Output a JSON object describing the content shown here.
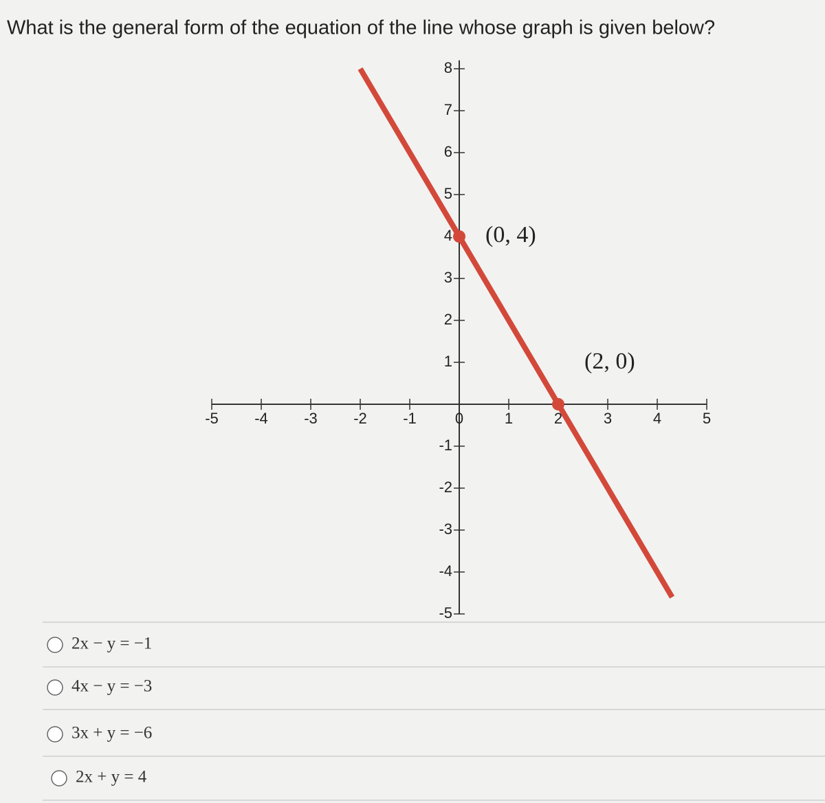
{
  "question": "What is the general form of the equation of the line whose graph is given below?",
  "chart_data": {
    "type": "line",
    "x": [
      -2,
      4.3
    ],
    "values": [
      8,
      -4.6
    ],
    "color": "#d2493a",
    "xlim": [
      -5,
      5
    ],
    "ylim": [
      -5,
      8.2
    ],
    "xticks": [
      -5,
      -4,
      -3,
      -2,
      -1,
      0,
      1,
      2,
      3,
      4,
      5
    ],
    "yticks": [
      -5,
      -4,
      -3,
      -2,
      -1,
      1,
      2,
      3,
      4,
      5,
      6,
      7,
      8
    ],
    "points": [
      {
        "x": 0,
        "y": 4,
        "label": "(0, 4)"
      },
      {
        "x": 2,
        "y": 0,
        "label": "(2, 0)"
      }
    ]
  },
  "options": [
    "2x − y = −1",
    "4x − y = −3",
    "3x + y = −6",
    "2x + y = 4"
  ]
}
